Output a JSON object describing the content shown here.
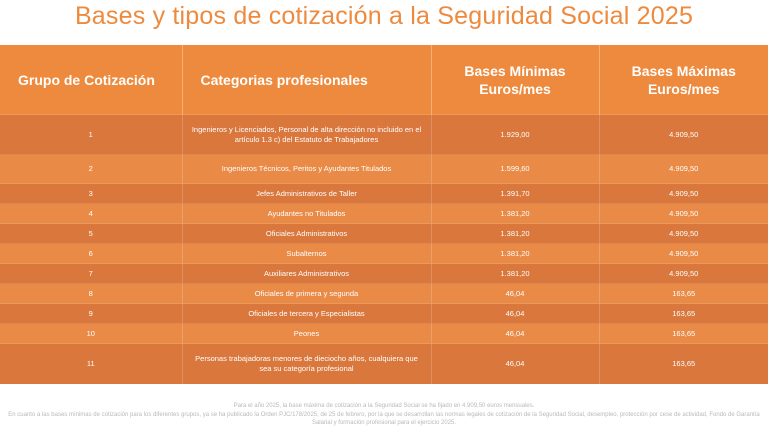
{
  "title": "Bases y tipos de cotización a la Seguridad Social 2025",
  "table": {
    "headers": [
      "Grupo de Cotización",
      "Categorias profesionales",
      "Bases Mínimas Euros/mes",
      "Bases Máximas Euros/mes"
    ],
    "rows": [
      {
        "grupo": "1",
        "categoria": "Ingenieros y Licenciados, Personal de alta dirección no incluido en el artículo 1.3 c) del Estatuto de Trabajadores",
        "minima": "1.929,00",
        "maxima": "4.909,50"
      },
      {
        "grupo": "2",
        "categoria": "Ingenieros Técnicos, Peritos y Ayudantes Titulados",
        "minima": "1.599,60",
        "maxima": "4.909,50"
      },
      {
        "grupo": "3",
        "categoria": "Jefes Administrativos de Taller",
        "minima": "1.391,70",
        "maxima": "4.909,50"
      },
      {
        "grupo": "4",
        "categoria": "Ayudantes no Titulados",
        "minima": "1.381,20",
        "maxima": "4.909,50"
      },
      {
        "grupo": "5",
        "categoria": "Oficiales Administrativos",
        "minima": "1.381,20",
        "maxima": "4.909,50"
      },
      {
        "grupo": "6",
        "categoria": "Subalternos",
        "minima": "1.381,20",
        "maxima": "4.909,50"
      },
      {
        "grupo": "7",
        "categoria": "Auxiliares Administrativos",
        "minima": "1.381,20",
        "maxima": "4.909,50"
      },
      {
        "grupo": "8",
        "categoria": "Oficiales de primera y segunda",
        "minima": "46,04",
        "maxima": "163,65"
      },
      {
        "grupo": "9",
        "categoria": "Oficiales de tercera y Especialistas",
        "minima": "46,04",
        "maxima": "163,65"
      },
      {
        "grupo": "10",
        "categoria": "Peones",
        "minima": "46,04",
        "maxima": "163,65"
      },
      {
        "grupo": "11",
        "categoria": "Personas trabajadoras menores de dieciocho años, cualquiera que sea su categoría profesional",
        "minima": "46,04",
        "maxima": "163,65"
      }
    ]
  },
  "footer": {
    "line1": "Para el año 2025, la base máxima de cotización a la Seguridad Social se ha fijado en 4.909,50 euros mensuales.",
    "line2": "En cuanto a las bases mínimas de cotización para los diferentes grupos, ya se ha publicado la Orden PJC/178/2025, de 25 de febrero, por la que se desarrollan las normas legales de cotización de la Seguridad Social, desempleo, protección por cese de actividad, Fondo de Garantía Salarial y formación profesional para el ejercicio 2025."
  },
  "colors": {
    "accent": "#ee8a3d",
    "row_dark": "#d9773d",
    "row_light": "#e98a46",
    "footer_text": "#b9b9b9"
  }
}
